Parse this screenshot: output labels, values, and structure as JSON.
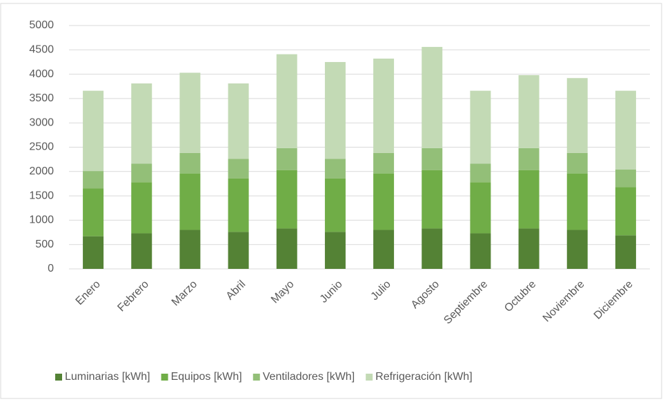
{
  "chart_data": {
    "type": "stacked_bar",
    "categories": [
      "Enero",
      "Febrero",
      "Marzo",
      "Abril",
      "Mayo",
      "Junio",
      "Julio",
      "Agosto",
      "Septiembre",
      "Octubre",
      "Noviembre",
      "Diciembre"
    ],
    "series": [
      {
        "name": "Luminarias [kWh]",
        "color": "#548235",
        "values": [
          670,
          730,
          800,
          760,
          830,
          760,
          800,
          830,
          730,
          830,
          800,
          690
        ]
      },
      {
        "name": "Equipos [kWh]",
        "color": "#70ad47",
        "values": [
          980,
          1050,
          1160,
          1100,
          1200,
          1100,
          1160,
          1200,
          1050,
          1200,
          1160,
          990
        ]
      },
      {
        "name": "Ventiladores [kWh]",
        "color": "#93bf78",
        "values": [
          360,
          380,
          420,
          400,
          450,
          400,
          420,
          450,
          380,
          450,
          420,
          360
        ]
      },
      {
        "name": "Refrigeración [kWh]",
        "color": "#c3dab5",
        "values": [
          1650,
          1650,
          1650,
          1550,
          1930,
          1990,
          1940,
          2080,
          1500,
          1500,
          1540,
          1620
        ]
      }
    ],
    "ylim": [
      0,
      5000
    ],
    "yticks": [
      0,
      500,
      1000,
      1500,
      2000,
      2500,
      3000,
      3500,
      4000,
      4500,
      5000
    ],
    "grid": true,
    "legend": "bottom"
  }
}
